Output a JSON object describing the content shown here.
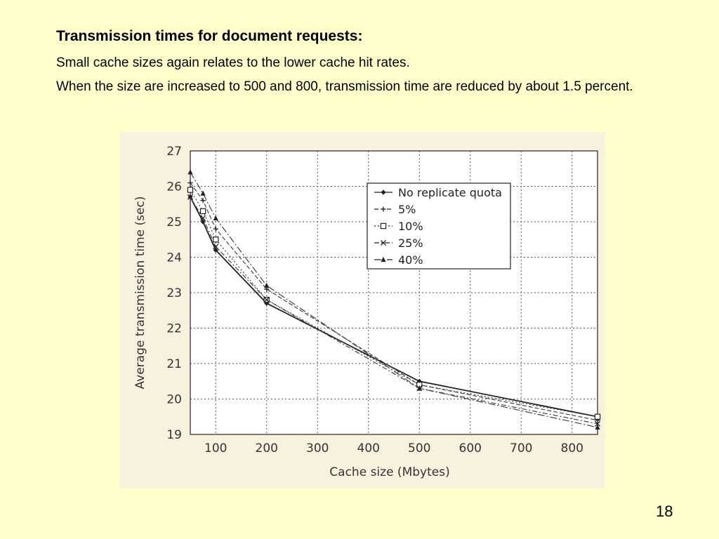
{
  "slide": {
    "title": "Transmission times for document requests:",
    "line1": "Small cache sizes again relates to the lower cache hit rates.",
    "line2": "When the size are increased to 500 and 800, transmission time are reduced by about 1.5 percent.",
    "page_number": "18"
  },
  "chart_data": {
    "type": "line",
    "title": "",
    "xlabel": "Cache size (Mbytes)",
    "ylabel": "Average transmission time (sec)",
    "xlim": [
      50,
      850
    ],
    "ylim": [
      19,
      27
    ],
    "xticks": [
      100,
      200,
      300,
      400,
      500,
      600,
      700,
      800
    ],
    "yticks": [
      19,
      20,
      21,
      22,
      23,
      24,
      25,
      26,
      27
    ],
    "grid": true,
    "legend_position": "top-right",
    "x": [
      50,
      75,
      100,
      200,
      500,
      850
    ],
    "series": [
      {
        "name": "No replicate quota",
        "marker": "diamond",
        "dash": "solid",
        "values": [
          25.7,
          25.0,
          24.2,
          22.7,
          20.5,
          19.5
        ]
      },
      {
        "name": "5%",
        "marker": "plus",
        "dash": "dashed",
        "values": [
          26.1,
          25.6,
          24.8,
          23.1,
          20.4,
          19.4
        ]
      },
      {
        "name": "10%",
        "marker": "square",
        "dash": "dotted",
        "values": [
          25.9,
          25.3,
          24.5,
          22.8,
          20.4,
          19.5
        ]
      },
      {
        "name": "25%",
        "marker": "x",
        "dash": "dashdot",
        "values": [
          25.7,
          25.1,
          24.3,
          22.8,
          20.3,
          19.3
        ]
      },
      {
        "name": "40%",
        "marker": "triangle",
        "dash": "longdash",
        "values": [
          26.4,
          25.8,
          25.1,
          23.2,
          20.3,
          19.2
        ]
      }
    ]
  }
}
